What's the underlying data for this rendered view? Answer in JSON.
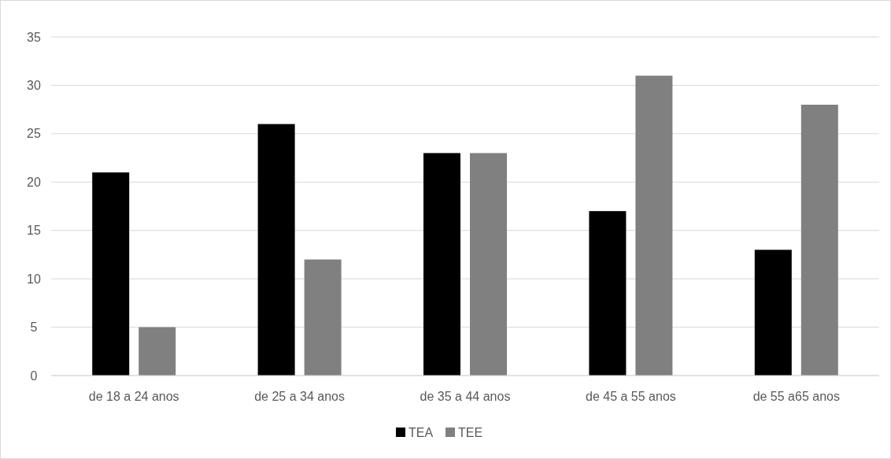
{
  "chart_data": {
    "type": "bar",
    "categories": [
      "de 18 a 24 anos",
      "de 25 a 34 anos",
      "de 35 a 44 anos",
      "de 45 a 55 anos",
      "de 55 a65 anos"
    ],
    "series": [
      {
        "name": "TEA",
        "color": "#000000",
        "values": [
          21,
          26,
          23,
          17,
          13
        ]
      },
      {
        "name": "TEE",
        "color": "#808080",
        "values": [
          5,
          12,
          23,
          31,
          28
        ]
      }
    ],
    "ylim": [
      0,
      35
    ],
    "yticks": [
      0,
      5,
      10,
      15,
      20,
      25,
      30,
      35
    ],
    "grid": "y",
    "legend": "bottom"
  }
}
